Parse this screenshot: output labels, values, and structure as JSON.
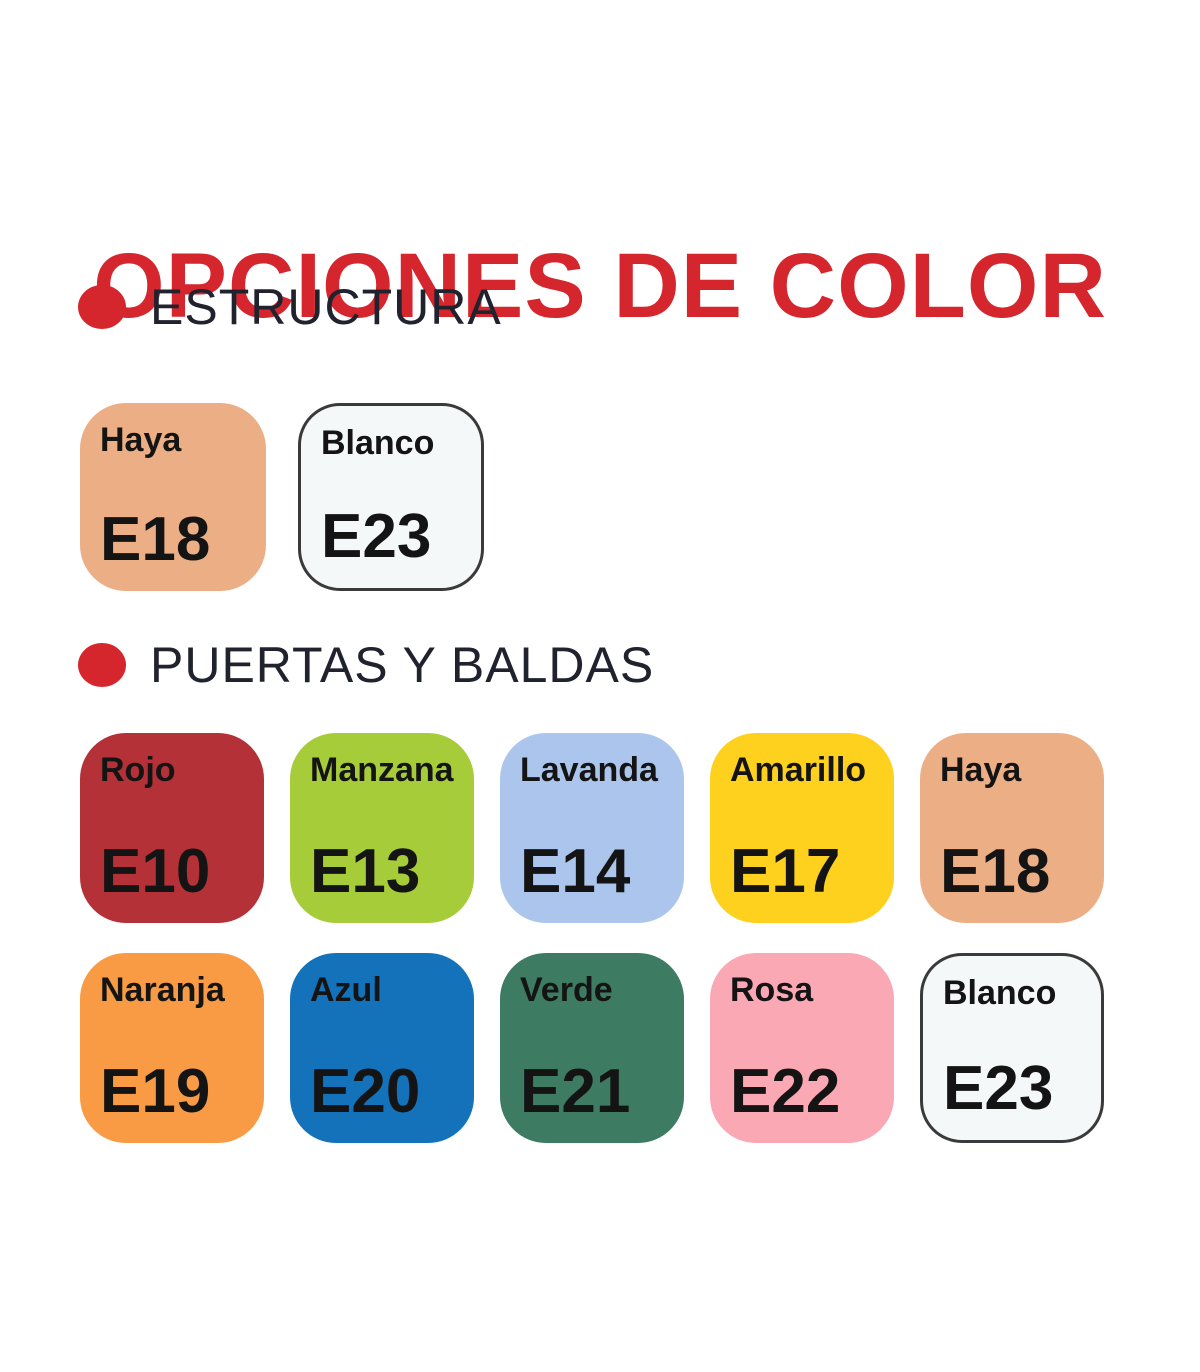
{
  "page": {
    "title": "OPCIONES DE COLOR"
  },
  "theme": {
    "accent_red": "#d5262e",
    "heading_text_color": "#20222e",
    "swatch_text_color": "#141414",
    "background": "#ffffff",
    "white_swatch_border": "#3a3a3a"
  },
  "sections": [
    {
      "label": "ESTRUCTURA",
      "swatches": [
        {
          "name": "Haya",
          "code": "E18",
          "color": "#ecae85",
          "bordered": false
        },
        {
          "name": "Blanco",
          "code": "E23",
          "color": "#f5f8f9",
          "bordered": true
        }
      ]
    },
    {
      "label": "PUERTAS Y BALDAS",
      "swatches": [
        {
          "name": "Rojo",
          "code": "E10",
          "color": "#b43137",
          "bordered": false
        },
        {
          "name": "Manzana",
          "code": "E13",
          "color": "#a7cc3a",
          "bordered": false
        },
        {
          "name": "Lavanda",
          "code": "E14",
          "color": "#abc5ec",
          "bordered": false
        },
        {
          "name": "Amarillo",
          "code": "E17",
          "color": "#fdd11e",
          "bordered": false
        },
        {
          "name": "Haya",
          "code": "E18",
          "color": "#ecae85",
          "bordered": false
        },
        {
          "name": "Naranja",
          "code": "E19",
          "color": "#f89b44",
          "bordered": false
        },
        {
          "name": "Azul",
          "code": "E20",
          "color": "#1372ba",
          "bordered": false
        },
        {
          "name": "Verde",
          "code": "E21",
          "color": "#3d7b62",
          "bordered": false
        },
        {
          "name": "Rosa",
          "code": "E22",
          "color": "#f9a8b4",
          "bordered": false
        },
        {
          "name": "Blanco",
          "code": "E23",
          "color": "#f5f8f9",
          "bordered": true
        }
      ]
    }
  ]
}
